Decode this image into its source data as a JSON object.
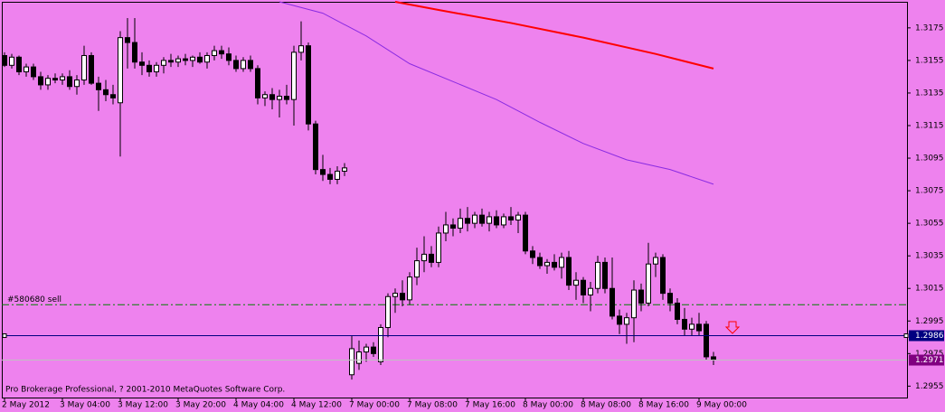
{
  "chart_data": {
    "type": "candlestick",
    "background": "#ee82ee",
    "up_color": "#ffffff",
    "down_color": "#000000",
    "categories": [
      "2 May 2012",
      null,
      null,
      null,
      null,
      null,
      null,
      null,
      "3 May 04:00",
      null,
      null,
      null,
      null,
      null,
      null,
      null,
      "3 May 12:00",
      null,
      null,
      null,
      null,
      null,
      null,
      null,
      "3 May 20:00",
      null,
      null,
      null,
      null,
      null,
      null,
      null,
      "4 May 04:00",
      null,
      null,
      null,
      null,
      null,
      null,
      null,
      "4 May 12:00",
      null,
      null,
      null,
      null,
      null,
      null,
      null,
      "7 May 00:00",
      null,
      null,
      null,
      null,
      null,
      null,
      null,
      "7 May 08:00",
      null,
      null,
      null,
      null,
      null,
      null,
      null,
      "7 May 16:00",
      null,
      null,
      null,
      null,
      null,
      null,
      null,
      "8 May 00:00",
      null,
      null,
      null,
      null,
      null,
      null,
      null,
      "8 May 08:00",
      null,
      null,
      null,
      null,
      null,
      null,
      null,
      "8 May 16:00",
      null,
      null,
      null,
      null,
      null,
      null,
      null,
      "9 May 00:00",
      null,
      null
    ],
    "ohlc": [
      [
        1.3158,
        1.316,
        1.3151,
        1.3152
      ],
      [
        1.3152,
        1.3159,
        1.315,
        1.3157
      ],
      [
        1.3157,
        1.3158,
        1.3146,
        1.3148
      ],
      [
        1.3148,
        1.3153,
        1.3145,
        1.3151
      ],
      [
        1.3151,
        1.3153,
        1.3143,
        1.3145
      ],
      [
        1.3145,
        1.3148,
        1.3137,
        1.314
      ],
      [
        1.314,
        1.3146,
        1.3137,
        1.3144
      ],
      [
        1.3144,
        1.3147,
        1.3141,
        1.3143
      ],
      [
        1.3143,
        1.3147,
        1.314,
        1.3145
      ],
      [
        1.3145,
        1.3149,
        1.3137,
        1.3139
      ],
      [
        1.3139,
        1.3146,
        1.3134,
        1.3143
      ],
      [
        1.3143,
        1.3164,
        1.314,
        1.3158
      ],
      [
        1.3158,
        1.316,
        1.314,
        1.3141
      ],
      [
        1.3141,
        1.3145,
        1.3124,
        1.3137
      ],
      [
        1.3137,
        1.3143,
        1.313,
        1.3134
      ],
      [
        1.3134,
        1.314,
        1.3128,
        1.3132
      ],
      [
        1.3129,
        1.3173,
        1.3096,
        1.3169
      ],
      [
        1.3169,
        1.3181,
        1.315,
        1.3166
      ],
      [
        1.3166,
        1.3181,
        1.315,
        1.3154
      ],
      [
        1.3154,
        1.316,
        1.3146,
        1.3152
      ],
      [
        1.3152,
        1.3155,
        1.3145,
        1.3148
      ],
      [
        1.3148,
        1.3154,
        1.3145,
        1.3152
      ],
      [
        1.3152,
        1.3157,
        1.3147,
        1.3155
      ],
      [
        1.3155,
        1.3159,
        1.3151,
        1.3154
      ],
      [
        1.3154,
        1.3158,
        1.3151,
        1.3156
      ],
      [
        1.3156,
        1.3159,
        1.3152,
        1.3155
      ],
      [
        1.3155,
        1.3158,
        1.3151,
        1.3157
      ],
      [
        1.3157,
        1.316,
        1.3153,
        1.3154
      ],
      [
        1.3154,
        1.316,
        1.315,
        1.3158
      ],
      [
        1.3158,
        1.3164,
        1.3155,
        1.3161
      ],
      [
        1.3161,
        1.3164,
        1.3156,
        1.3159
      ],
      [
        1.3159,
        1.3163,
        1.3152,
        1.3155
      ],
      [
        1.3155,
        1.3158,
        1.3148,
        1.315
      ],
      [
        1.315,
        1.3157,
        1.3148,
        1.3155
      ],
      [
        1.3155,
        1.3158,
        1.3148,
        1.315
      ],
      [
        1.315,
        1.3152,
        1.3128,
        1.3132
      ],
      [
        1.3132,
        1.3136,
        1.3127,
        1.3134
      ],
      [
        1.3134,
        1.3138,
        1.3125,
        1.3131
      ],
      [
        1.3131,
        1.3137,
        1.312,
        1.3133
      ],
      [
        1.3133,
        1.314,
        1.3128,
        1.3131
      ],
      [
        1.3131,
        1.3164,
        1.3115,
        1.316
      ],
      [
        1.316,
        1.3179,
        1.3155,
        1.3164
      ],
      [
        1.3164,
        1.3166,
        1.3112,
        1.3116
      ],
      [
        1.3116,
        1.3118,
        1.3085,
        1.3088
      ],
      [
        1.3088,
        1.3097,
        1.3081,
        1.3085
      ],
      [
        1.3085,
        1.3089,
        1.3079,
        1.3082
      ],
      [
        1.3082,
        1.309,
        1.3079,
        1.3087
      ],
      [
        1.3087,
        1.3092,
        1.3084,
        1.3089
      ],
      [
        1.2962,
        1.2986,
        1.2959,
        1.2978
      ],
      [
        1.2969,
        1.2983,
        1.2965,
        1.2976
      ],
      [
        1.2976,
        1.2981,
        1.297,
        1.2979
      ],
      [
        1.2979,
        1.2982,
        1.2973,
        1.2975
      ],
      [
        1.297,
        1.2993,
        1.2968,
        1.2991
      ],
      [
        1.2991,
        1.3012,
        1.2985,
        1.301
      ],
      [
        1.301,
        1.3015,
        1.3,
        1.3012
      ],
      [
        1.3012,
        1.302,
        1.3004,
        1.3008
      ],
      [
        1.3008,
        1.3025,
        1.3005,
        1.3022
      ],
      [
        1.3022,
        1.304,
        1.3017,
        1.3032
      ],
      [
        1.3032,
        1.3047,
        1.3025,
        1.3036
      ],
      [
        1.3036,
        1.3041,
        1.3028,
        1.3031
      ],
      [
        1.3031,
        1.3053,
        1.3028,
        1.3049
      ],
      [
        1.3049,
        1.3062,
        1.3044,
        1.3054
      ],
      [
        1.3054,
        1.3058,
        1.3047,
        1.3052
      ],
      [
        1.3052,
        1.3064,
        1.3049,
        1.3058
      ],
      [
        1.3058,
        1.3065,
        1.305,
        1.3055
      ],
      [
        1.3055,
        1.3062,
        1.3052,
        1.306
      ],
      [
        1.306,
        1.3064,
        1.3053,
        1.3055
      ],
      [
        1.3055,
        1.3062,
        1.305,
        1.3059
      ],
      [
        1.3059,
        1.3063,
        1.3052,
        1.3054
      ],
      [
        1.3054,
        1.3061,
        1.3052,
        1.3059
      ],
      [
        1.3059,
        1.3065,
        1.3054,
        1.3057
      ],
      [
        1.3057,
        1.3062,
        1.3049,
        1.306
      ],
      [
        1.306,
        1.3062,
        1.3036,
        1.3038
      ],
      [
        1.3038,
        1.3041,
        1.303,
        1.3034
      ],
      [
        1.3034,
        1.3037,
        1.3027,
        1.3029
      ],
      [
        1.3029,
        1.3033,
        1.3024,
        1.3031
      ],
      [
        1.3031,
        1.3036,
        1.3026,
        1.3028
      ],
      [
        1.3028,
        1.3037,
        1.3021,
        1.3034
      ],
      [
        1.3034,
        1.3038,
        1.3014,
        1.3017
      ],
      [
        1.3017,
        1.3025,
        1.3008,
        1.302
      ],
      [
        1.302,
        1.3022,
        1.3006,
        1.3011
      ],
      [
        1.3011,
        1.3019,
        1.3001,
        1.3015
      ],
      [
        1.3015,
        1.3035,
        1.3012,
        1.3031
      ],
      [
        1.3031,
        1.3034,
        1.3012,
        1.3015
      ],
      [
        1.3015,
        1.3034,
        1.2996,
        1.2998
      ],
      [
        1.2998,
        1.3002,
        1.2987,
        1.2993
      ],
      [
        1.2993,
        1.3,
        1.2981,
        1.2997
      ],
      [
        1.2997,
        1.302,
        1.2982,
        1.3014
      ],
      [
        1.3014,
        1.3018,
        1.3001,
        1.3006
      ],
      [
        1.3006,
        1.3043,
        1.3004,
        1.303
      ],
      [
        1.303,
        1.3037,
        1.3022,
        1.3034
      ],
      [
        1.3034,
        1.3036,
        1.3008,
        1.3012
      ],
      [
        1.3012,
        1.3015,
        1.3001,
        1.3006
      ],
      [
        1.3006,
        1.3009,
        1.2993,
        1.2996
      ],
      [
        1.2996,
        1.3003,
        1.2986,
        1.299
      ],
      [
        1.299,
        1.2997,
        1.2986,
        1.2993
      ],
      [
        1.2993,
        1.3,
        1.2986,
        1.2989
      ],
      [
        1.2993,
        1.2995,
        1.2971,
        1.2973
      ],
      [
        1.2973,
        1.2976,
        1.2968,
        1.2971
      ]
    ],
    "lines": [
      {
        "color": "#ff0000",
        "width": 2,
        "x": [
          54,
          60,
          70,
          80,
          90,
          98
        ],
        "values": [
          1.3191,
          1.3186,
          1.3178,
          1.3169,
          1.3159,
          1.315
        ]
      },
      {
        "color": "#8a2be2",
        "width": 1,
        "x": [
          38,
          44,
          50,
          56,
          62,
          68,
          74,
          80,
          86,
          92,
          98
        ],
        "values": [
          1.3191,
          1.3184,
          1.317,
          1.3153,
          1.3142,
          1.3131,
          1.3117,
          1.3104,
          1.3094,
          1.3088,
          1.3079
        ]
      }
    ],
    "levels": [
      {
        "value": 1.2986,
        "color": "#000080",
        "box": "#000080"
      },
      {
        "value": 1.2971,
        "color": "#c0c0c0",
        "box": "#800080"
      }
    ],
    "order": {
      "value": 1.3005,
      "name": "#580680 sell",
      "color": "#008000"
    },
    "ylim": [
      1.2948,
      1.3191
    ],
    "yticks": [
      1.3175,
      1.3155,
      1.3135,
      1.3115,
      1.3095,
      1.3075,
      1.3055,
      1.3035,
      1.3015,
      1.2995,
      1.2975,
      1.2955
    ],
    "footer": "Pro Brokerage Professional, ? 2001-2010 MetaQuotes Software Corp."
  }
}
